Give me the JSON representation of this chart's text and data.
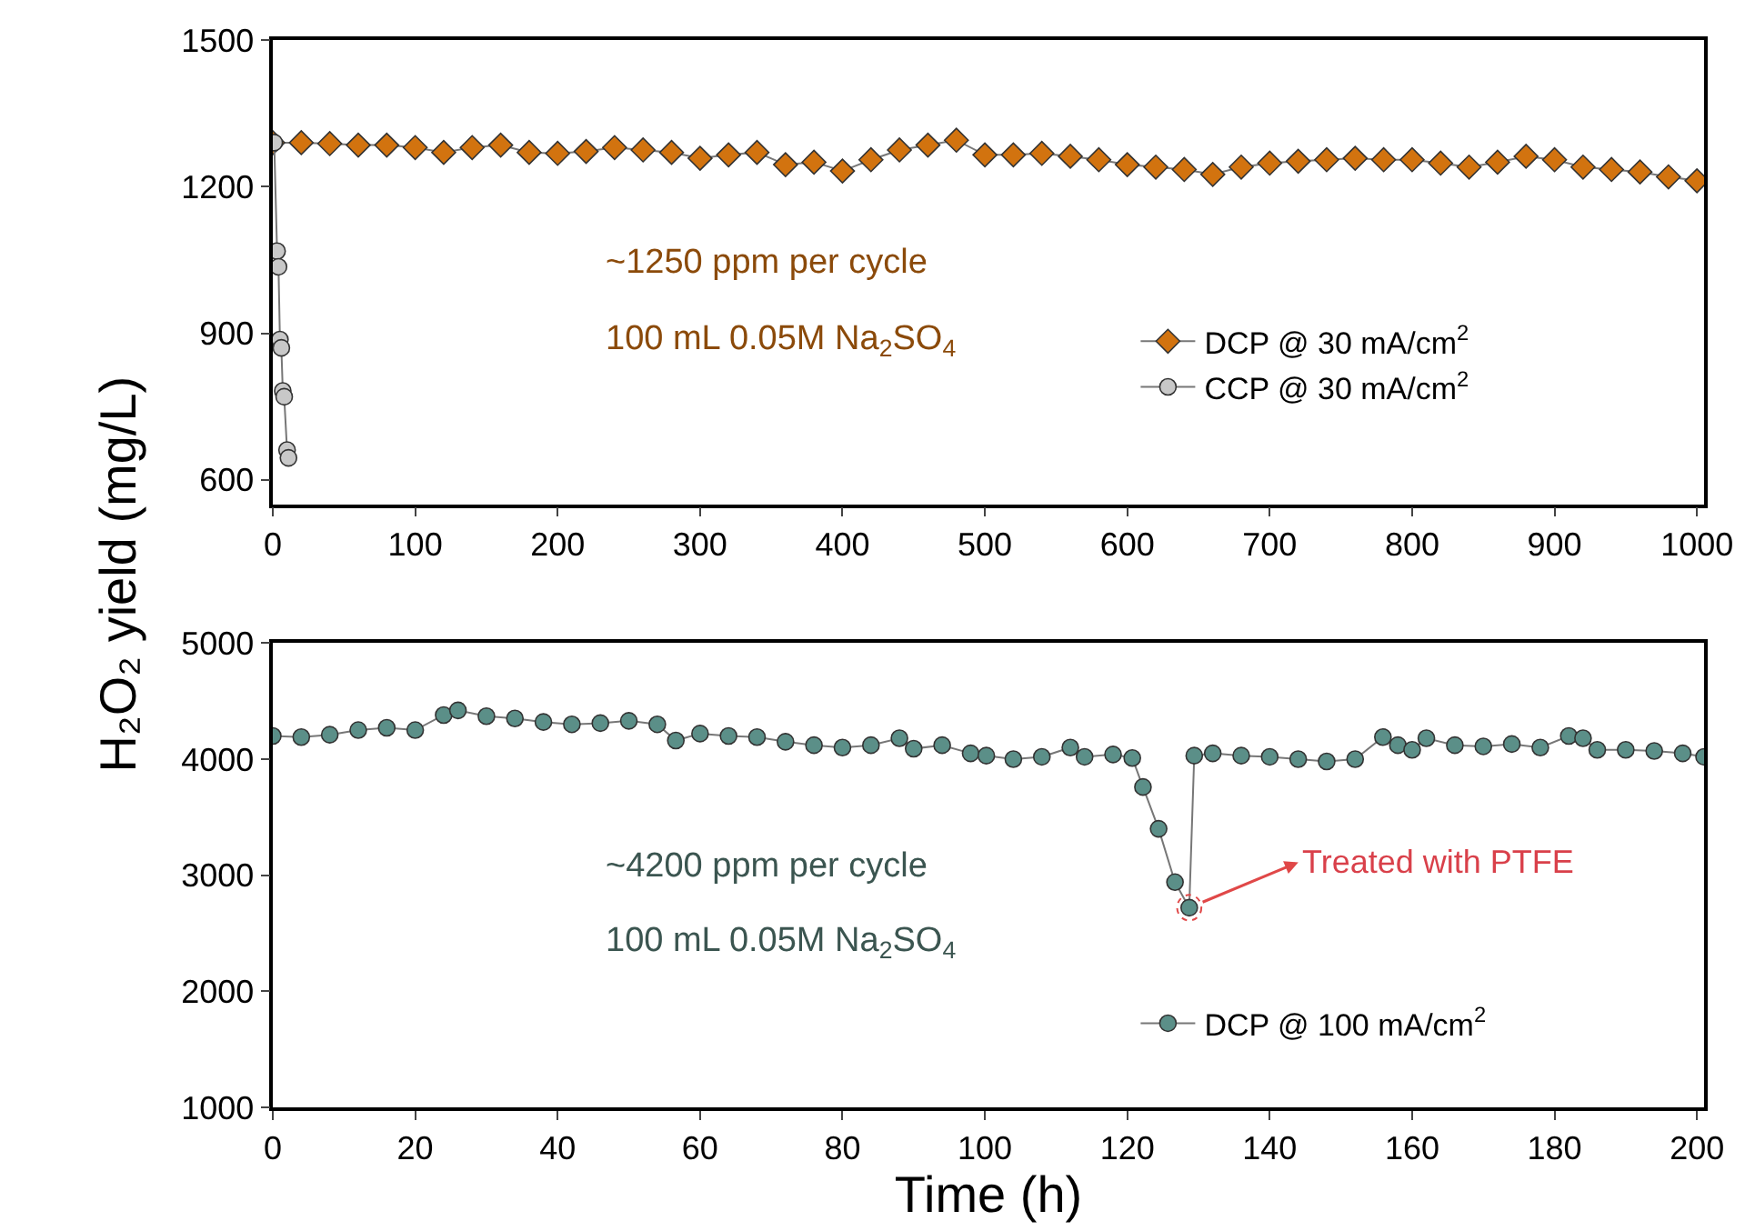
{
  "chart_data": [
    {
      "type": "line",
      "ylabel": "H₂O₂ yield (mg/L)",
      "xlim": [
        0,
        1005
      ],
      "xticks": [
        0,
        100,
        200,
        300,
        400,
        500,
        600,
        700,
        800,
        900,
        1000
      ],
      "ylim": [
        550,
        1500
      ],
      "yticks": [
        600,
        900,
        1200,
        1500
      ],
      "legend": "right",
      "annotations": [
        "~1250 ppm per cycle",
        "100 mL 0.05M Na$_{2}$SO$_{4}$"
      ],
      "series": [
        {
          "name": "DCP @ 30 mA/cm$^{2}$",
          "color": "#d2730f",
          "marker": "diamond",
          "x": [
            0,
            20,
            40,
            60,
            80,
            100,
            120,
            140,
            160,
            180,
            200,
            220,
            240,
            260,
            280,
            300,
            320,
            340,
            360,
            380,
            400,
            420,
            440,
            460,
            480,
            500,
            520,
            540,
            560,
            580,
            600,
            620,
            640,
            660,
            680,
            700,
            720,
            740,
            760,
            780,
            800,
            820,
            840,
            860,
            880,
            900,
            920,
            940,
            960,
            980,
            1000
          ],
          "values": [
            1290,
            1290,
            1288,
            1285,
            1285,
            1280,
            1270,
            1280,
            1285,
            1270,
            1268,
            1272,
            1280,
            1275,
            1270,
            1258,
            1265,
            1270,
            1245,
            1250,
            1232,
            1255,
            1275,
            1285,
            1295,
            1265,
            1265,
            1268,
            1262,
            1255,
            1245,
            1240,
            1235,
            1225,
            1240,
            1248,
            1252,
            1255,
            1258,
            1255,
            1255,
            1248,
            1240,
            1250,
            1262,
            1255,
            1240,
            1235,
            1230,
            1220,
            1212
          ]
        },
        {
          "name": "CCP @ 30 mA/cm$^{2}$",
          "color": "#c8c8c8",
          "marker": "circle",
          "x": [
            1,
            3,
            4,
            5,
            6,
            7,
            8,
            10,
            11
          ],
          "values": [
            1290,
            1068,
            1036,
            887,
            870,
            782,
            770,
            661,
            645
          ]
        }
      ]
    },
    {
      "type": "line",
      "xlabel": "Time (h)",
      "xlim": [
        0,
        201
      ],
      "xticks": [
        0,
        20,
        40,
        60,
        80,
        100,
        120,
        140,
        160,
        180,
        200
      ],
      "ylim": [
        1000,
        5000
      ],
      "yticks": [
        1000,
        2000,
        3000,
        4000,
        5000
      ],
      "legend": "bottom right",
      "annotations": [
        "~4200 ppm per cycle",
        "100 mL 0.05M Na$_{2}$SO$_{4}$",
        {
          "text": "Treated with PTFE",
          "x": 128.7,
          "y": 2720
        }
      ],
      "series": [
        {
          "name": "DCP @ 100 mA/cm$^{2}$",
          "color": "#5b8f88",
          "marker": "circle",
          "x": [
            0,
            4,
            8,
            12,
            16,
            20,
            24,
            26,
            30,
            34,
            38,
            42,
            46,
            50,
            54,
            56.6,
            60,
            64,
            68,
            72,
            76,
            80,
            84,
            88,
            90,
            94,
            98,
            100.2,
            104,
            108,
            112,
            114,
            118,
            120.7,
            122.2,
            124.4,
            126.7,
            128.7,
            129.4,
            132,
            136,
            140,
            144,
            148,
            152,
            155.9,
            158,
            160,
            162,
            166,
            170,
            174,
            178,
            182,
            184,
            186,
            190,
            194,
            198,
            201
          ],
          "values": [
            4200,
            4190,
            4210,
            4250,
            4270,
            4250,
            4380,
            4420,
            4370,
            4350,
            4320,
            4300,
            4310,
            4330,
            4300,
            4160,
            4220,
            4200,
            4190,
            4150,
            4120,
            4100,
            4120,
            4180,
            4090,
            4120,
            4050,
            4030,
            4000,
            4020,
            4100,
            4020,
            4040,
            4010,
            3760,
            3400,
            2940,
            2720,
            4030,
            4050,
            4030,
            4020,
            4000,
            3980,
            4000,
            4190,
            4120,
            4080,
            4180,
            4120,
            4110,
            4130,
            4100,
            4200,
            4180,
            4080,
            4080,
            4070,
            4050,
            4020
          ]
        }
      ]
    }
  ]
}
